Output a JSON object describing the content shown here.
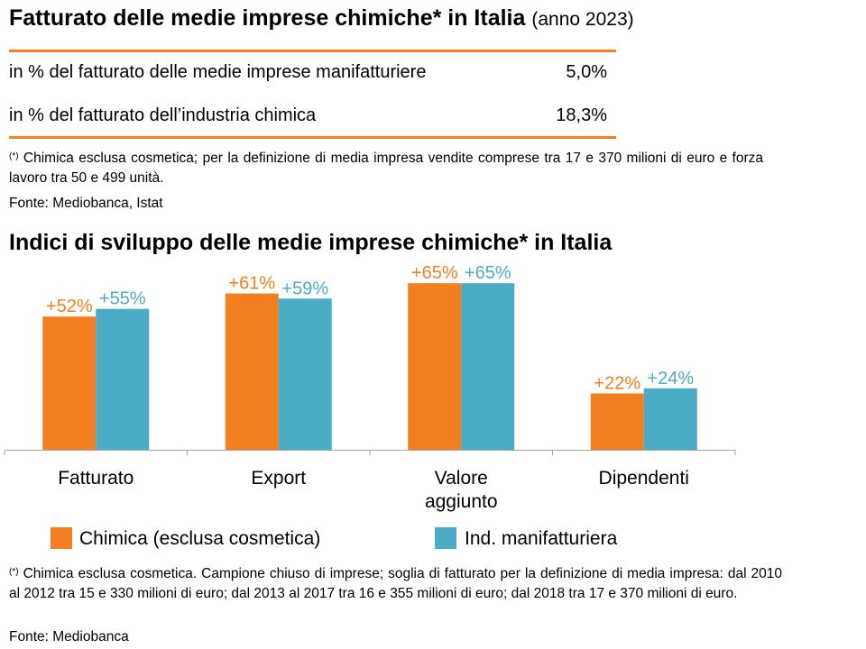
{
  "header": {
    "title": "Fatturato delle medie imprese chimiche* in Italia",
    "year_note": "(anno 2023)"
  },
  "stats": [
    {
      "label": "in % del fatturato delle medie imprese manifatturiere",
      "value": "5,0%"
    },
    {
      "label": "in % del fatturato dell’industria chimica",
      "value": "18,3%"
    }
  ],
  "note1": {
    "marker": "(*)",
    "text": "Chimica esclusa cosmetica; per la definizione di media impresa vendite comprese tra 17 e 370 milioni di euro e forza lavoro tra 50 e 499 unità."
  },
  "source1": "Fonte: Mediobanca, Istat",
  "chart_title": "Indici di sviluppo delle medie imprese chimiche* in Italia",
  "chart_data": {
    "type": "bar",
    "categories": [
      "Fatturato",
      "Export",
      "Valore aggiunto",
      "Dipendenti"
    ],
    "category_lines": [
      [
        "Fatturato"
      ],
      [
        "Export"
      ],
      [
        "Valore",
        "aggiunto"
      ],
      [
        "Dipendenti"
      ]
    ],
    "series": [
      {
        "name": "Chimica (esclusa cosmetica)",
        "values": [
          52,
          61,
          65,
          22
        ],
        "labels": [
          "+52%",
          "+61%",
          "+65%",
          "+22%"
        ],
        "color": "#f47f20",
        "label_color": "#f47f20"
      },
      {
        "name": "Ind. manifatturiera",
        "values": [
          55,
          59,
          65,
          24
        ],
        "labels": [
          "+55%",
          "+59%",
          "+65%",
          "+24%"
        ],
        "color": "#4bacc6",
        "label_color": "#4bacc6"
      }
    ],
    "ylim": [
      0,
      70
    ],
    "xlabel": "",
    "ylabel": "",
    "grid": false
  },
  "legend": {
    "items": [
      {
        "label": "Chimica (esclusa cosmetica)",
        "color": "#f47f20"
      },
      {
        "label": "Ind. manifatturiera",
        "color": "#4bacc6"
      }
    ]
  },
  "note2": {
    "marker": "(*)",
    "text": "Chimica esclusa cosmetica. Campione chiuso di imprese; soglia di fatturato per la definizione di media impresa: dal 2010 al 2012 tra 15 e 330 milioni di euro; dal 2013 al 2017 tra 16 e 355 milioni di euro; dal 2018 tra 17 e 370 milioni di euro."
  },
  "source2": "Fonte: Mediobanca",
  "colors": {
    "accent": "#f47f20",
    "secondary": "#4bacc6"
  }
}
